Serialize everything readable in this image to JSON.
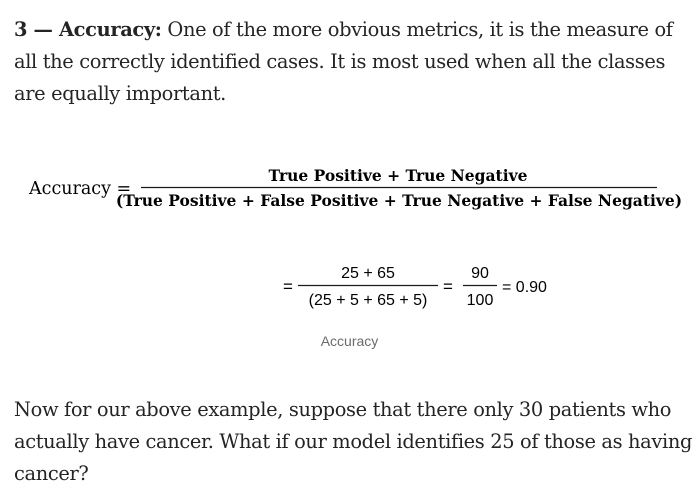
{
  "intro": {
    "lead": "3 — Accuracy:",
    "text": " One of the more obvious metrics, it is the measure of all the correctly identified cases. It is most used when all the classes are equally important."
  },
  "formula": {
    "label": "Accuracy =",
    "numerator": "True Positive + True Negative",
    "denominator": "(True Positive + False Positive + True Negative + False Negative)"
  },
  "calculation": {
    "eq_sign_1": "=",
    "fraction_1_numerator": "25 + 65",
    "fraction_1_denominator": "(25 + 5 + 65 + 5)",
    "eq_sign_2": "=",
    "fraction_2_numerator": "90",
    "fraction_2_denominator": "100",
    "result": "= 0.90"
  },
  "caption": "Accuracy",
  "followup": {
    "text": "Now for our above example, suppose that there only 30 patients who actually have cancer. What if our model identifies 25 of those as having cancer?"
  }
}
